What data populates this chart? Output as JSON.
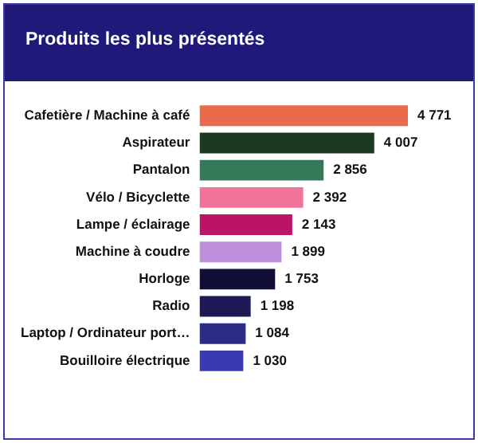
{
  "chart_data": {
    "type": "bar",
    "orientation": "horizontal",
    "title": "Produits les plus présentés",
    "categories": [
      "Cafetière / Machine à café",
      "Aspirateur",
      "Pantalon",
      "Vélo / Bicyclette",
      "Lampe / éclairage",
      "Machine à coudre",
      "Horloge",
      "Radio",
      "Laptop / Ordinateur port…",
      "Bouilloire électrique"
    ],
    "values": [
      4771,
      4007,
      2856,
      2392,
      2143,
      1899,
      1753,
      1198,
      1084,
      1030
    ],
    "colors": [
      "#ec6a4c",
      "#1b3a20",
      "#34795a",
      "#f07399",
      "#bb1466",
      "#bd8fdb",
      "#110f35",
      "#1c1b55",
      "#2c2b85",
      "#3a3bb0"
    ],
    "value_labels": [
      "4 771",
      "4 007",
      "2 856",
      "2 392",
      "2 143",
      "1 899",
      "1 753",
      "1 198",
      "1 084",
      "1 030"
    ]
  }
}
